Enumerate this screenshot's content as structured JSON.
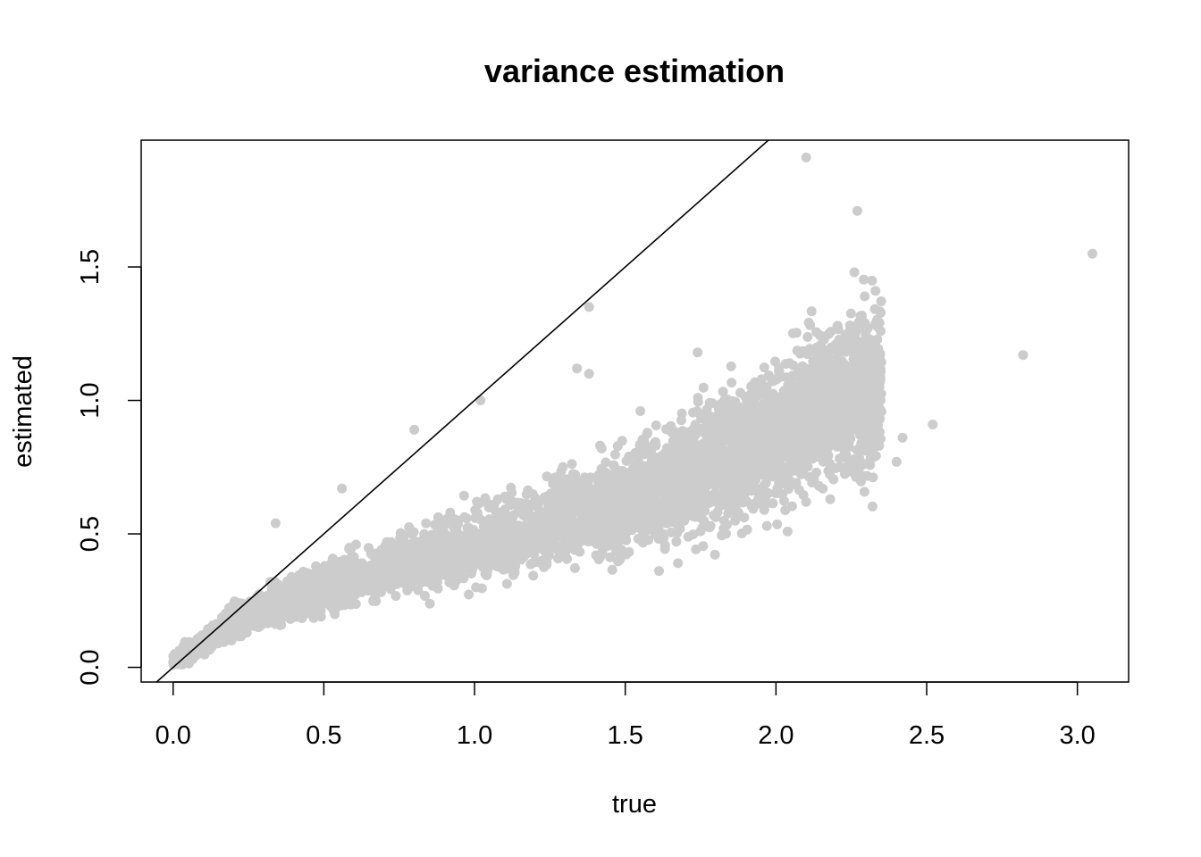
{
  "chart_data": {
    "type": "scatter",
    "title": "variance estimation",
    "xlabel": "true",
    "ylabel": "estimated",
    "xlim": [
      -0.106,
      3.17
    ],
    "ylim": [
      -0.055,
      1.975
    ],
    "x_ticks": [
      {
        "value": 0.0,
        "label": "0.0"
      },
      {
        "value": 0.5,
        "label": "0.5"
      },
      {
        "value": 1.0,
        "label": "1.0"
      },
      {
        "value": 1.5,
        "label": "1.5"
      },
      {
        "value": 2.0,
        "label": "2.0"
      },
      {
        "value": 2.5,
        "label": "2.5"
      },
      {
        "value": 3.0,
        "label": "3.0"
      }
    ],
    "y_ticks": [
      {
        "value": 0.0,
        "label": "0.0"
      },
      {
        "value": 0.5,
        "label": "0.5"
      },
      {
        "value": 1.0,
        "label": "1.0"
      },
      {
        "value": 1.5,
        "label": "1.5"
      }
    ],
    "reference_line": {
      "intercept": 0,
      "slope": 1,
      "color": "#000000"
    },
    "point_color": "#cccccc",
    "grid": false,
    "legend": "none",
    "trend_points": [
      {
        "x": 0.0,
        "y": 0.02
      },
      {
        "x": 0.25,
        "y": 0.2
      },
      {
        "x": 0.5,
        "y": 0.3
      },
      {
        "x": 0.75,
        "y": 0.38
      },
      {
        "x": 1.0,
        "y": 0.45
      },
      {
        "x": 1.25,
        "y": 0.54
      },
      {
        "x": 1.5,
        "y": 0.63
      },
      {
        "x": 1.75,
        "y": 0.74
      },
      {
        "x": 2.0,
        "y": 0.87
      },
      {
        "x": 2.15,
        "y": 0.98
      },
      {
        "x": 2.3,
        "y": 1.02
      }
    ],
    "outliers": [
      {
        "x": 2.1,
        "y": 1.91
      },
      {
        "x": 2.27,
        "y": 1.71
      },
      {
        "x": 3.05,
        "y": 1.55
      },
      {
        "x": 2.82,
        "y": 1.17
      },
      {
        "x": 2.52,
        "y": 0.91
      },
      {
        "x": 1.38,
        "y": 1.35
      },
      {
        "x": 1.34,
        "y": 1.12
      },
      {
        "x": 1.38,
        "y": 1.1
      },
      {
        "x": 1.02,
        "y": 1.0
      },
      {
        "x": 0.8,
        "y": 0.89
      },
      {
        "x": 0.56,
        "y": 0.67
      },
      {
        "x": 0.34,
        "y": 0.54
      },
      {
        "x": 2.42,
        "y": 0.86
      },
      {
        "x": 2.4,
        "y": 0.77
      },
      {
        "x": 2.18,
        "y": 0.63
      },
      {
        "x": 2.1,
        "y": 0.62
      },
      {
        "x": 1.55,
        "y": 0.96
      },
      {
        "x": 1.74,
        "y": 1.18
      },
      {
        "x": 1.75,
        "y": 0.51
      },
      {
        "x": 1.97,
        "y": 0.53
      },
      {
        "x": 2.26,
        "y": 1.48
      },
      {
        "x": 2.33,
        "y": 1.41
      }
    ]
  }
}
